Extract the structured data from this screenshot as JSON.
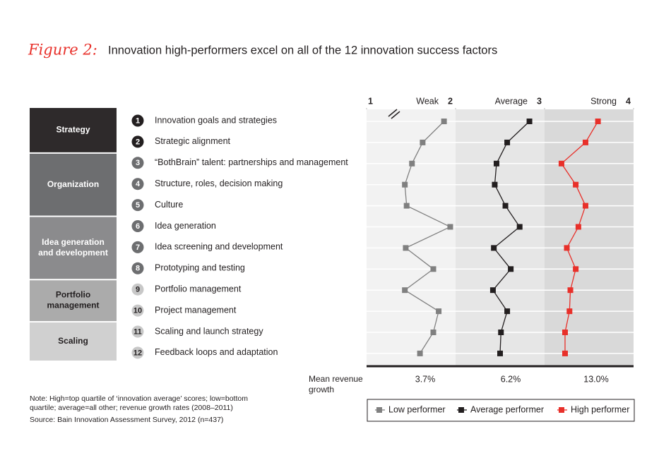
{
  "chart_data": {
    "type": "line",
    "title_prefix": "Figure 2:",
    "title": "Innovation high-performers excel on all of the 12 innovation success factors",
    "categories": [
      "Innovation goals and strategies",
      "Strategic alignment",
      "“BothBrain” talent: partnerships and management",
      "Structure, roles, decision making",
      "Culture",
      "Idea generation",
      "Idea screening and development",
      "Prototyping and testing",
      "Portfolio management",
      "Project management",
      "Scaling and launch strategy",
      "Feedback loops and adaptation"
    ],
    "category_numbers": [
      "1",
      "2",
      "3",
      "4",
      "5",
      "6",
      "7",
      "8",
      "9",
      "10",
      "11",
      "12"
    ],
    "groups": [
      {
        "name": "Strategy",
        "count": 2,
        "color": "#2e2a2b"
      },
      {
        "name": "Organization",
        "count": 3,
        "color": "#6d6e70"
      },
      {
        "name": "Idea generation and development",
        "count": 3,
        "color": "#8b8b8d"
      },
      {
        "name": "Portfolio management",
        "count": 2,
        "color": "#ababab"
      },
      {
        "name": "Scaling",
        "count": 2,
        "color": "#d0d0d0"
      }
    ],
    "xlim": [
      1,
      4
    ],
    "xticks": [
      1,
      2,
      3,
      4
    ],
    "zone_labels": [
      "Weak",
      "Average",
      "Strong"
    ],
    "series": [
      {
        "name": "Low performer",
        "color": "#808080",
        "values": [
          1.87,
          1.63,
          1.51,
          1.43,
          1.45,
          1.94,
          1.44,
          1.75,
          1.43,
          1.81,
          1.75,
          1.6
        ]
      },
      {
        "name": "Average performer",
        "color": "#231f20",
        "values": [
          2.83,
          2.58,
          2.46,
          2.44,
          2.56,
          2.72,
          2.43,
          2.62,
          2.42,
          2.58,
          2.51,
          2.5
        ]
      },
      {
        "name": "High performer",
        "color": "#e8302a",
        "values": [
          3.6,
          3.46,
          3.19,
          3.35,
          3.46,
          3.38,
          3.25,
          3.35,
          3.29,
          3.28,
          3.23,
          3.23
        ]
      }
    ],
    "growth_label": "Mean revenue growth",
    "growth_values": [
      3.7,
      6.2,
      13.0
    ],
    "growth_value_labels": [
      "3.7%",
      "6.2%",
      "13.0%"
    ],
    "note": "Note: High=top quartile of ‘innovation average’ scores; low=bottom quartile; average=all other; revenue growth rates (2008–2011)",
    "source": "Source: Bain Innovation Assessment Survey, 2012 (n=437)"
  }
}
